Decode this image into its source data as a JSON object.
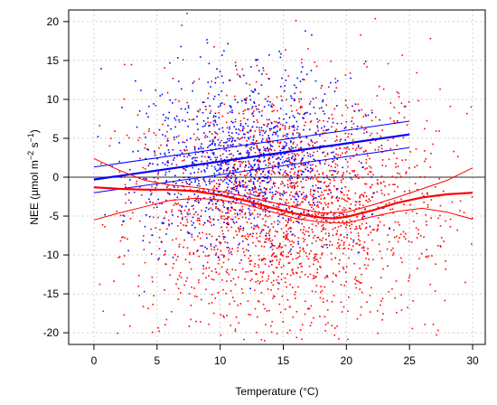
{
  "chart_data": {
    "type": "scatter",
    "title": "",
    "xlabel": "Temperature (°C)",
    "ylabel": "NEE (µmol m⁻² s⁻¹)",
    "ylabel_parts": {
      "main": "NEE (µmol m",
      "exp1": "−2",
      "mid": " s",
      "exp2": "−1",
      "end": ")"
    },
    "xlim": [
      -2,
      31
    ],
    "ylim": [
      -21.5,
      21.5
    ],
    "x_ticks": [
      0,
      5,
      10,
      15,
      20,
      25,
      30
    ],
    "x_tick_labels": [
      "0",
      "5",
      "10",
      "15",
      "20",
      "25",
      "30"
    ],
    "y_ticks": [
      -20,
      -15,
      -10,
      -5,
      0,
      5,
      10,
      15,
      20
    ],
    "y_tick_labels": [
      "-20",
      "-15",
      "-10",
      "-5",
      "0",
      "5",
      "10",
      "15",
      "20"
    ],
    "grid": true,
    "legend": "none",
    "reference_line": {
      "y": 0,
      "color": "#555555"
    },
    "series": [
      {
        "color": "#0000ff",
        "scatter": {
          "n": 1100,
          "x_center": 12,
          "x_sd": 4.2,
          "x_range": [
            0,
            25
          ],
          "y_center": 2.5,
          "y_slope": 0.2,
          "y_sd": 5.5
        },
        "fit": {
          "x": [
            0,
            25
          ],
          "y": [
            -0.3,
            5.5
          ]
        },
        "ci_upper": {
          "x": [
            0,
            25
          ],
          "y": [
            1.3,
            7.2
          ]
        },
        "ci_lower": {
          "x": [
            0,
            25
          ],
          "y": [
            -2.0,
            3.8
          ]
        }
      },
      {
        "color": "#ff0000",
        "scatter": {
          "n": 2200,
          "x_center": 15,
          "x_sd": 6.0,
          "x_range": [
            0,
            30
          ],
          "y_center": -4,
          "y_sd": 7.5
        },
        "fit": {
          "x": [
            0,
            2,
            4,
            6,
            8,
            10,
            12,
            14,
            16,
            18,
            19,
            20,
            22,
            24,
            26,
            28,
            30
          ],
          "y": [
            -1.3,
            -1.5,
            -1.6,
            -1.6,
            -1.8,
            -2.3,
            -3.0,
            -3.9,
            -4.7,
            -5.2,
            -5.3,
            -5.1,
            -4.3,
            -3.3,
            -2.6,
            -2.2,
            -2.0
          ]
        },
        "ci_upper": {
          "x": [
            0,
            2,
            4,
            6,
            8,
            10,
            12,
            14,
            16,
            18,
            20,
            22,
            24,
            26,
            28,
            30
          ],
          "y": [
            2.4,
            0.9,
            -0.4,
            -1.0,
            -1.3,
            -1.8,
            -2.5,
            -3.2,
            -3.9,
            -4.6,
            -4.5,
            -3.6,
            -2.6,
            -1.5,
            -0.4,
            1.2
          ]
        },
        "ci_lower": {
          "x": [
            0,
            2,
            4,
            6,
            8,
            10,
            12,
            14,
            16,
            18,
            20,
            22,
            24,
            26,
            28,
            30
          ],
          "y": [
            -5.5,
            -4.6,
            -3.8,
            -3.0,
            -2.7,
            -2.9,
            -3.5,
            -4.4,
            -5.3,
            -5.8,
            -5.9,
            -5.1,
            -4.4,
            -4.0,
            -4.5,
            -5.4
          ]
        }
      }
    ]
  }
}
